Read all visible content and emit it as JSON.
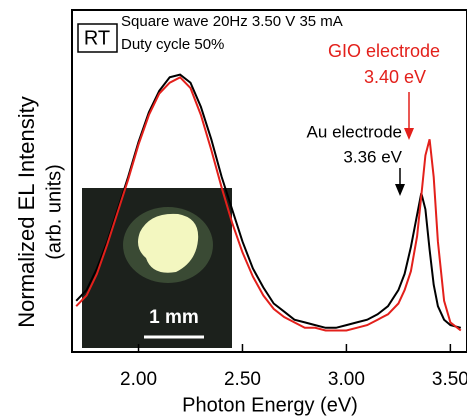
{
  "chart_data": {
    "type": "line",
    "x_label": "Photon Energy (eV)",
    "y_label": [
      "Normalized EL Intensity",
      "(arb. units)"
    ],
    "x": [
      1.7,
      1.75,
      1.8,
      1.85,
      1.9,
      1.95,
      2.0,
      2.05,
      2.1,
      2.15,
      2.2,
      2.25,
      2.3,
      2.35,
      2.4,
      2.45,
      2.5,
      2.55,
      2.6,
      2.65,
      2.7,
      2.75,
      2.8,
      2.85,
      2.9,
      2.95,
      3.0,
      3.05,
      3.1,
      3.15,
      3.2,
      3.25,
      3.28,
      3.31,
      3.34,
      3.36,
      3.38,
      3.4,
      3.42,
      3.44,
      3.47,
      3.5,
      3.55
    ],
    "series": [
      {
        "name": "Au electrode",
        "color": "#000000",
        "values": [
          0.16,
          0.2,
          0.28,
          0.38,
          0.5,
          0.62,
          0.75,
          0.86,
          0.94,
          0.99,
          1.0,
          0.97,
          0.88,
          0.76,
          0.62,
          0.5,
          0.38,
          0.28,
          0.21,
          0.15,
          0.12,
          0.09,
          0.08,
          0.07,
          0.06,
          0.06,
          0.07,
          0.08,
          0.09,
          0.11,
          0.14,
          0.2,
          0.26,
          0.36,
          0.48,
          0.56,
          0.5,
          0.35,
          0.22,
          0.14,
          0.09,
          0.07,
          0.06
        ]
      },
      {
        "name": "GIO electrode",
        "color": "#e3201b",
        "values": [
          0.14,
          0.18,
          0.26,
          0.37,
          0.49,
          0.61,
          0.74,
          0.85,
          0.93,
          0.97,
          0.99,
          0.95,
          0.85,
          0.72,
          0.58,
          0.45,
          0.34,
          0.25,
          0.18,
          0.13,
          0.1,
          0.08,
          0.06,
          0.06,
          0.05,
          0.05,
          0.05,
          0.06,
          0.07,
          0.09,
          0.11,
          0.15,
          0.2,
          0.27,
          0.4,
          0.55,
          0.7,
          0.76,
          0.62,
          0.38,
          0.16,
          0.08,
          0.05
        ]
      }
    ],
    "xlim": [
      1.68,
      3.58
    ],
    "ylim": [
      -0.03,
      1.24
    ],
    "xticks": [
      {
        "value": 2,
        "label": "2.00"
      },
      {
        "value": 2.5,
        "label": "2.50"
      },
      {
        "value": 3,
        "label": "3.00"
      },
      {
        "value": 3.5,
        "label": "3.50"
      }
    ],
    "annotations": {
      "temp": "RT",
      "cond1": "Square wave 20Hz 3.50 V 35 mA",
      "cond2": "Duty cycle 50%",
      "gio_energy": "3.40 eV",
      "au_energy": "3.36 eV",
      "scale": "1 mm"
    }
  }
}
